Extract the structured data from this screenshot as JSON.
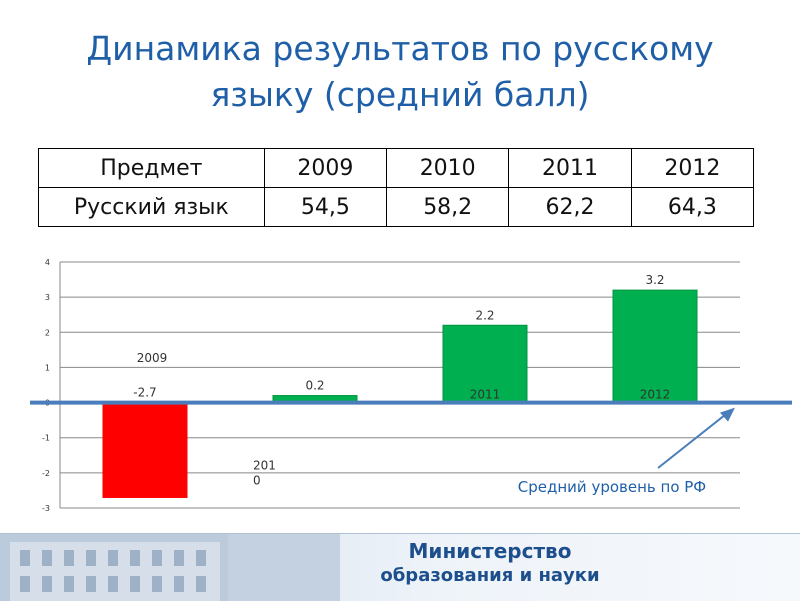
{
  "title": {
    "line1": "Динамика результатов по русскому",
    "line2": "языку (средний балл)"
  },
  "table": {
    "header": [
      "Предмет",
      "2009",
      "2010",
      "2011",
      "2012"
    ],
    "row": [
      "Русский язык",
      "54,5",
      "58,2",
      "62,2",
      "64,3"
    ]
  },
  "chart_data": {
    "type": "bar",
    "categories": [
      "2009",
      "2010",
      "2011",
      "2012"
    ],
    "category_labels": [
      "2009",
      "2010",
      "2011",
      "2012"
    ],
    "values": [
      -2.7,
      0.2,
      2.2,
      3.2
    ],
    "value_labels": [
      "-2.7",
      "0.2",
      "2.2",
      "3.2"
    ],
    "colors": [
      "#ff0000",
      "#00b050",
      "#00b050",
      "#00b050"
    ],
    "ylim": [
      -3,
      4
    ],
    "yticks": [
      "-3",
      "-2",
      "-1",
      "0",
      "1",
      "2",
      "3",
      "4"
    ],
    "grid": true,
    "reference_line": {
      "value": 0,
      "color": "#4a7ebb"
    },
    "annotation": "Средний уровень  по РФ"
  },
  "footer": {
    "line1": "Министерство",
    "line2": "образования и науки"
  }
}
